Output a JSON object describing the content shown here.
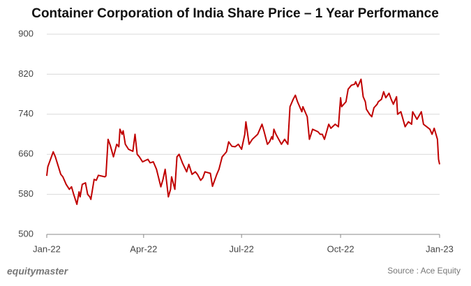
{
  "chart_data": {
    "type": "line",
    "title": "Container Corporation of India Share Price – 1 Year Performance",
    "brand": "equitymaster",
    "source": "Source : Ace Equity",
    "color": "#c00000",
    "grid": true,
    "xlim": [
      0,
      365
    ],
    "xticks": [
      {
        "value": 0,
        "label": "Jan-22"
      },
      {
        "value": 90,
        "label": "Apr-22"
      },
      {
        "value": 181,
        "label": "Jul-22"
      },
      {
        "value": 273,
        "label": "Oct-22"
      },
      {
        "value": 365,
        "label": "Jan-23"
      }
    ],
    "ylim": [
      500,
      900
    ],
    "yticks": [
      500,
      580,
      660,
      740,
      820,
      900
    ],
    "x": [
      0,
      1,
      6,
      8,
      13,
      15,
      18,
      21,
      23,
      25,
      28,
      30,
      31,
      33,
      36,
      38,
      40,
      41,
      44,
      46,
      48,
      54,
      55,
      57,
      59,
      62,
      65,
      67,
      68,
      70,
      71,
      73,
      76,
      80,
      82,
      84,
      86,
      89,
      94,
      96,
      99,
      102,
      106,
      108,
      110,
      113,
      115,
      116,
      119,
      121,
      123,
      126,
      130,
      132,
      135,
      138,
      140,
      143,
      145,
      147,
      152,
      154,
      158,
      160,
      163,
      167,
      169,
      172,
      175,
      178,
      181,
      184,
      185,
      188,
      191,
      196,
      200,
      202,
      205,
      207,
      209,
      210,
      211,
      213,
      218,
      221,
      224,
      226,
      229,
      231,
      233,
      237,
      238,
      242,
      244,
      247,
      252,
      254,
      256,
      258,
      262,
      264,
      268,
      271,
      273,
      274,
      278,
      280,
      283,
      286,
      287,
      289,
      292,
      294,
      296,
      297,
      300,
      302,
      304,
      307,
      308,
      311,
      313,
      315,
      318,
      320,
      322,
      325,
      326,
      329,
      333,
      336,
      339,
      340,
      344,
      348,
      350,
      353,
      356,
      358,
      360,
      363,
      364,
      365
    ],
    "values": [
      617,
      635,
      665,
      655,
      620,
      615,
      600,
      590,
      595,
      580,
      560,
      585,
      575,
      600,
      603,
      580,
      575,
      570,
      610,
      608,
      618,
      615,
      617,
      690,
      678,
      655,
      680,
      675,
      710,
      700,
      707,
      680,
      670,
      666,
      700,
      660,
      655,
      645,
      650,
      643,
      645,
      630,
      595,
      610,
      630,
      575,
      590,
      615,
      590,
      655,
      660,
      643,
      625,
      640,
      620,
      625,
      620,
      608,
      613,
      625,
      622,
      596,
      620,
      630,
      655,
      665,
      685,
      676,
      675,
      680,
      670,
      700,
      725,
      680,
      690,
      700,
      720,
      705,
      680,
      685,
      695,
      690,
      710,
      700,
      680,
      690,
      680,
      755,
      770,
      778,
      765,
      745,
      755,
      735,
      690,
      710,
      705,
      700,
      700,
      690,
      720,
      712,
      720,
      715,
      773,
      755,
      765,
      790,
      798,
      800,
      805,
      795,
      810,
      775,
      765,
      750,
      740,
      735,
      753,
      760,
      765,
      770,
      785,
      773,
      782,
      770,
      760,
      775,
      740,
      745,
      715,
      725,
      720,
      745,
      730,
      745,
      720,
      715,
      710,
      700,
      712,
      690,
      650,
      640
    ]
  }
}
